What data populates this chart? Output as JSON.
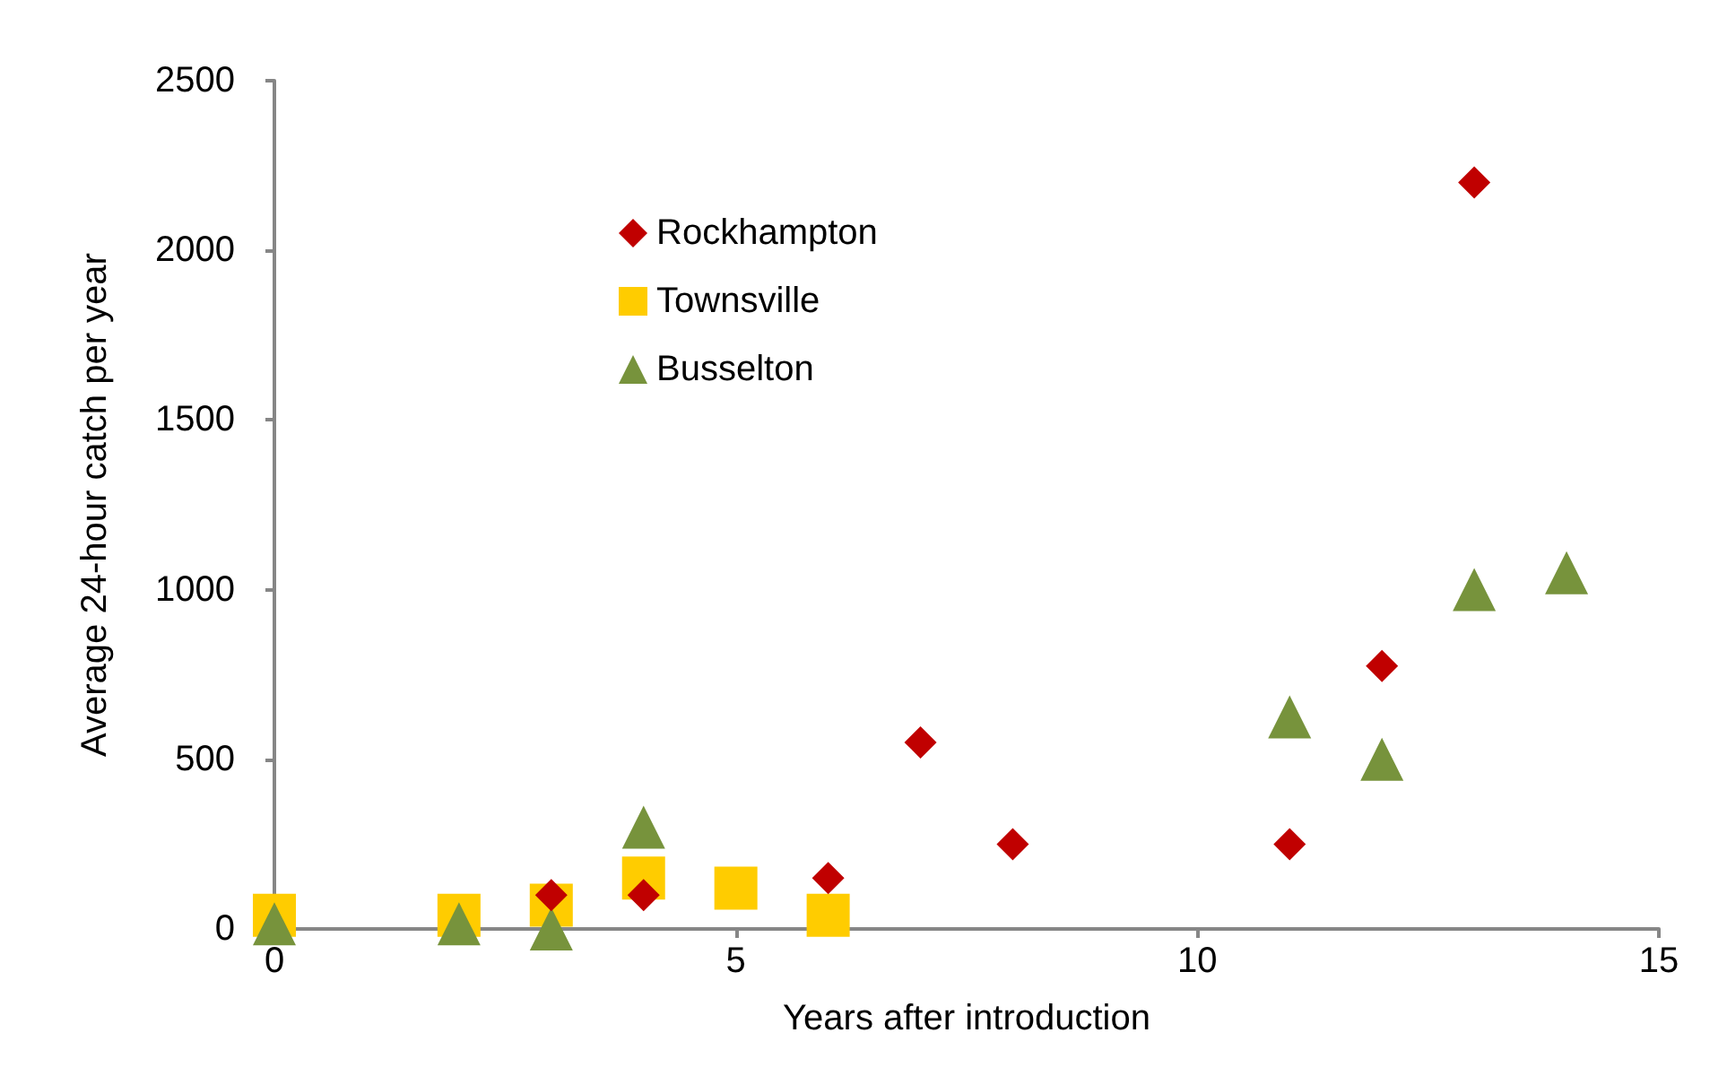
{
  "chart_data": {
    "type": "scatter",
    "xlabel": "Years after introduction",
    "ylabel": "Average 24-hour catch per year",
    "xlim": [
      0,
      15
    ],
    "xticks": [
      0,
      5,
      10,
      15
    ],
    "ylim": [
      0,
      2500
    ],
    "yticks": [
      0,
      500,
      1000,
      1500,
      2000,
      2500
    ],
    "grid": false,
    "legend": "top left",
    "series": [
      {
        "name": "Rockhampton",
        "color": "#c00000",
        "marker": "diamond",
        "x": [
          3,
          4,
          6,
          7,
          8,
          11,
          12,
          13
        ],
        "values": [
          100,
          100,
          150,
          550,
          250,
          250,
          775,
          2200
        ]
      },
      {
        "name": "Townsville",
        "color": "#ffcc00",
        "marker": "square",
        "x": [
          0,
          2,
          3,
          4,
          5,
          6
        ],
        "values": [
          40,
          40,
          70,
          150,
          120,
          40
        ]
      },
      {
        "name": "Busselton",
        "color": "#77933c",
        "marker": "triangle",
        "x": [
          0,
          2,
          3,
          4,
          11,
          12,
          13,
          14
        ],
        "values": [
          15,
          15,
          0,
          300,
          625,
          500,
          1000,
          1050
        ]
      }
    ]
  }
}
